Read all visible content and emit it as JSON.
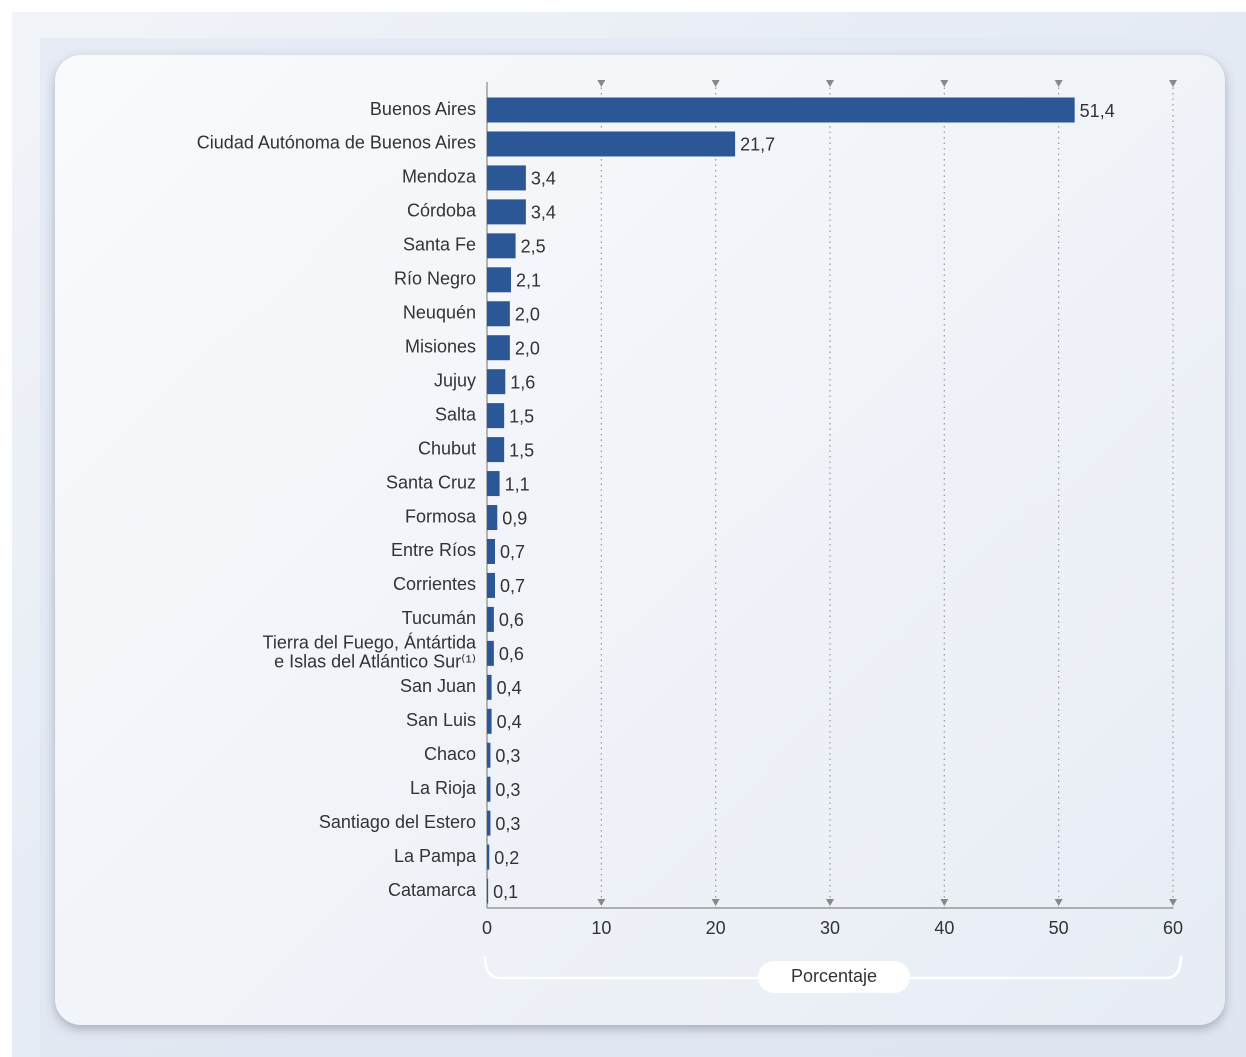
{
  "chart_data": {
    "type": "bar",
    "orientation": "horizontal",
    "categories": [
      "Buenos Aires",
      "Ciudad Autónoma de Buenos Aires",
      "Mendoza",
      "Córdoba",
      "Santa Fe",
      "Río Negro",
      "Neuquén",
      "Misiones",
      "Jujuy",
      "Salta",
      "Chubut",
      "Santa Cruz",
      "Formosa",
      "Entre Ríos",
      "Corrientes",
      "Tucumán",
      "Tierra del Fuego, Ántártida e Islas del Atlántico Sur⁽¹⁾",
      "San Juan",
      "San Luis",
      "Chaco",
      "La Rioja",
      "Santiago del Estero",
      "La Pampa",
      "Catamarca"
    ],
    "values": [
      51.4,
      21.7,
      3.4,
      3.4,
      2.5,
      2.1,
      2.0,
      2.0,
      1.6,
      1.5,
      1.5,
      1.1,
      0.9,
      0.7,
      0.7,
      0.6,
      0.6,
      0.4,
      0.4,
      0.3,
      0.3,
      0.3,
      0.2,
      0.1
    ],
    "value_labels": [
      "51,4",
      "21,7",
      "3,4",
      "3,4",
      "2,5",
      "2,1",
      "2,0",
      "2,0",
      "1,6",
      "1,5",
      "1,5",
      "1,1",
      "0,9",
      "0,7",
      "0,7",
      "0,6",
      "0,6",
      "0,4",
      "0,4",
      "0,3",
      "0,3",
      "0,3",
      "0,2",
      "0,1"
    ],
    "color": "#2b5797",
    "xlim": [
      0,
      60
    ],
    "xticks": [
      0,
      10,
      20,
      30,
      40,
      50,
      60
    ],
    "xlabel": "Porcentaje",
    "grid": true
  }
}
